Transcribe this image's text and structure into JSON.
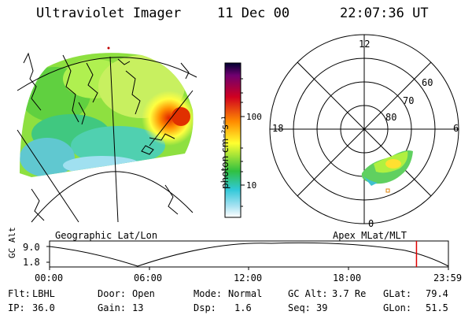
{
  "header": {
    "instrument": "Ultraviolet Imager",
    "date": "11 Dec 00",
    "time": "22:07:36 UT"
  },
  "colorbar": {
    "unit_label": "photon cm⁻²s⁻¹",
    "ticks": [
      "100",
      "10"
    ],
    "scale": "log",
    "colors": [
      "#000030",
      "#800080",
      "#d00020",
      "#ff8000",
      "#ffff00",
      "#00c040",
      "#40c0e0",
      "#ffffff"
    ]
  },
  "geo_panel": {
    "label": "Geographic Lat/Lon"
  },
  "polar_panel": {
    "label": "Apex MLat/MLT",
    "mlt_labels": {
      "top": "12",
      "left": "18",
      "right": "6",
      "bottom": "0"
    },
    "lat_labels": [
      "60",
      "70",
      "80"
    ]
  },
  "altitude_plot": {
    "axis_label": "GC Alt",
    "y_ticks": [
      "9.0",
      "1.8"
    ],
    "x_ticks": [
      "00:00",
      "06:00",
      "12:00",
      "18:00",
      "23:59"
    ],
    "current_time_marker_fraction": 0.92,
    "marker_color": "#e00000"
  },
  "status": {
    "flt_label": "Flt:",
    "flt_value": "LBHL",
    "ip_label": "IP:",
    "ip_value": "36.0",
    "door_label": "Door:",
    "door_value": "Open",
    "gain_label": "Gain:",
    "gain_value": "13",
    "mode_label": "Mode:",
    "mode_value": "Normal",
    "dsp_label": "Dsp:",
    "dsp_value": "1.6",
    "gcalt_label": "GC Alt:",
    "gcalt_value": "3.7 Re",
    "seq_label": "Seq:",
    "seq_value": "39",
    "glat_label": "GLat:",
    "glat_value": "79.4",
    "glon_label": "GLon:",
    "glon_value": "51.5"
  }
}
